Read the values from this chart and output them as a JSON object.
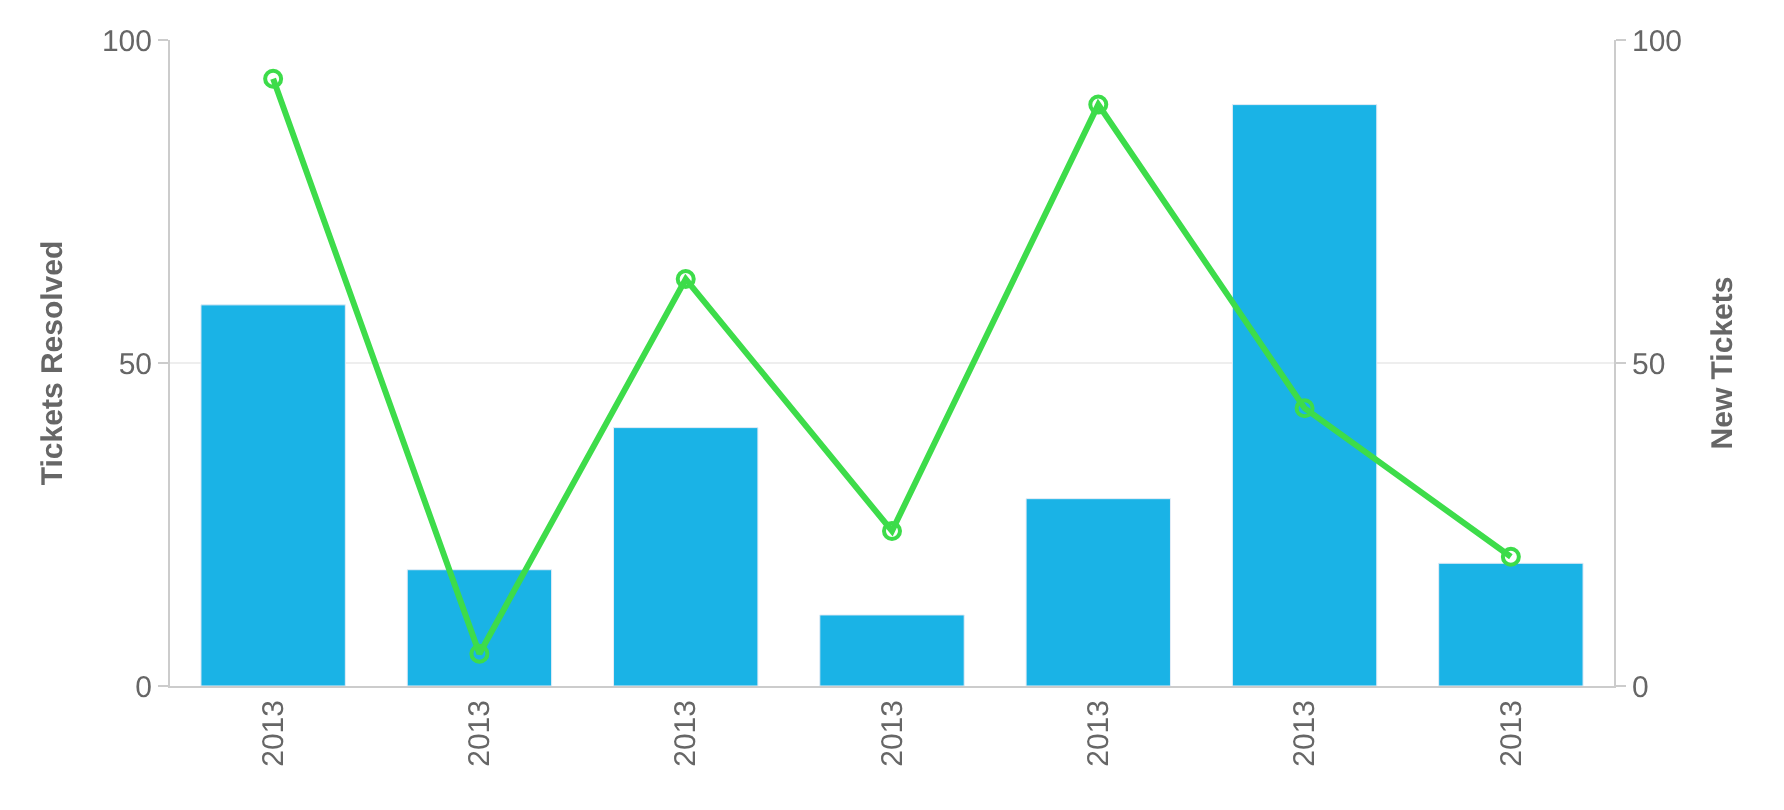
{
  "chart_data": {
    "type": "bar",
    "ylabel": "Tickets Resolved",
    "y2label": "New Tickets",
    "categories": [
      "2013",
      "2013",
      "2013",
      "2013",
      "2013",
      "2013",
      "2013"
    ],
    "series": [
      {
        "color": "#1ab3e6",
        "values": [
          59,
          18,
          40,
          11,
          29,
          90,
          19
        ]
      },
      {
        "type": "line",
        "axis": "y2",
        "color": "#3ddc4a",
        "marker": "circle",
        "values": [
          94,
          5,
          63,
          24,
          90,
          43,
          20
        ]
      }
    ],
    "ylim": [
      0,
      100
    ],
    "yticks": [
      0,
      50,
      100
    ],
    "y2lim": [
      0,
      100
    ],
    "y2ticks": [
      0,
      50,
      100
    ],
    "grid": "y"
  }
}
